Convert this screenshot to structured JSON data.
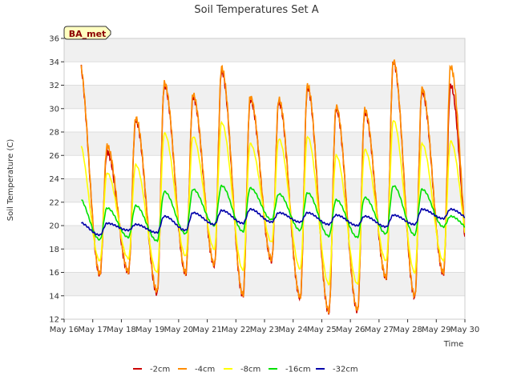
{
  "chart_data": {
    "type": "line",
    "title": "Soil Temperatures Set A",
    "xlabel": "Time",
    "ylabel": "Soil Temperature (C)",
    "badge": "BA_met",
    "ylim": [
      12,
      36
    ],
    "yticks": [
      12,
      14,
      16,
      18,
      20,
      22,
      24,
      26,
      28,
      30,
      32,
      34,
      36
    ],
    "xlim": [
      0,
      14
    ],
    "xtick_labels": [
      "May 16",
      "May 17",
      "May 18",
      "May 19",
      "May 20",
      "May 21",
      "May 22",
      "May 23",
      "May 24",
      "May 25",
      "May 26",
      "May 27",
      "May 28",
      "May 29",
      "May 30"
    ],
    "x_unit": "days since May 16",
    "grid": true,
    "legend_position": "bottom",
    "daily_peak_time": 0.5,
    "daily_min_time": 0.25,
    "series": [
      {
        "name": "-2cm",
        "color": "#cc0000",
        "x_start": 0.6,
        "x_end": 14.0,
        "mins": [
          17.2,
          15.8,
          16.0,
          14.2,
          15.9,
          16.6,
          14.0,
          17.0,
          13.8,
          12.6,
          12.7,
          15.5,
          13.9,
          15.9,
          14.5
        ],
        "maxs": [
          34.3,
          26.3,
          29.0,
          32.0,
          31.0,
          33.2,
          30.8,
          30.6,
          31.8,
          30.0,
          29.7,
          34.0,
          31.5,
          32.0
        ]
      },
      {
        "name": "-4cm",
        "color": "#ff8c00",
        "x_start": 0.6,
        "x_end": 14.0,
        "mins": [
          17.0,
          15.9,
          16.1,
          14.4,
          16.0,
          16.7,
          14.1,
          17.1,
          13.9,
          12.7,
          12.8,
          15.6,
          14.0,
          16.0,
          14.6
        ],
        "maxs": [
          34.4,
          26.8,
          29.2,
          32.2,
          31.2,
          33.5,
          31.0,
          30.8,
          32.0,
          30.2,
          29.9,
          34.1,
          31.7,
          33.6
        ]
      },
      {
        "name": "-8cm",
        "color": "#ffff00",
        "x_start": 0.6,
        "x_end": 14.0,
        "mins": [
          18.6,
          17.0,
          17.2,
          16.0,
          17.4,
          18.0,
          16.2,
          18.6,
          16.3,
          15.0,
          15.0,
          17.0,
          16.0,
          17.0,
          16.8
        ],
        "maxs": [
          27.3,
          24.5,
          25.2,
          27.9,
          27.6,
          28.8,
          27.0,
          27.4,
          27.6,
          26.0,
          26.5,
          29.0,
          27.0,
          27.2
        ]
      },
      {
        "name": "-16cm",
        "color": "#00e000",
        "x_start": 0.6,
        "x_end": 14.0,
        "mins": [
          20.3,
          18.8,
          19.0,
          18.7,
          19.3,
          20.0,
          19.5,
          20.5,
          19.6,
          19.1,
          19.0,
          19.3,
          19.2,
          19.9,
          19.6
        ],
        "maxs": [
          22.4,
          21.5,
          21.7,
          22.9,
          23.1,
          23.4,
          23.2,
          22.7,
          22.8,
          22.2,
          22.4,
          23.4,
          23.1,
          20.8
        ]
      },
      {
        "name": "-32cm",
        "color": "#0000aa",
        "x_start": 0.6,
        "x_end": 14.0,
        "mins": [
          19.8,
          19.2,
          19.6,
          19.4,
          19.6,
          20.1,
          20.2,
          20.3,
          20.3,
          20.1,
          20.0,
          19.9,
          20.1,
          20.6,
          20.5
        ],
        "maxs": [
          20.3,
          20.2,
          20.1,
          20.8,
          21.1,
          21.3,
          21.4,
          21.1,
          21.1,
          20.9,
          20.8,
          20.9,
          21.4,
          21.4
        ]
      }
    ]
  }
}
